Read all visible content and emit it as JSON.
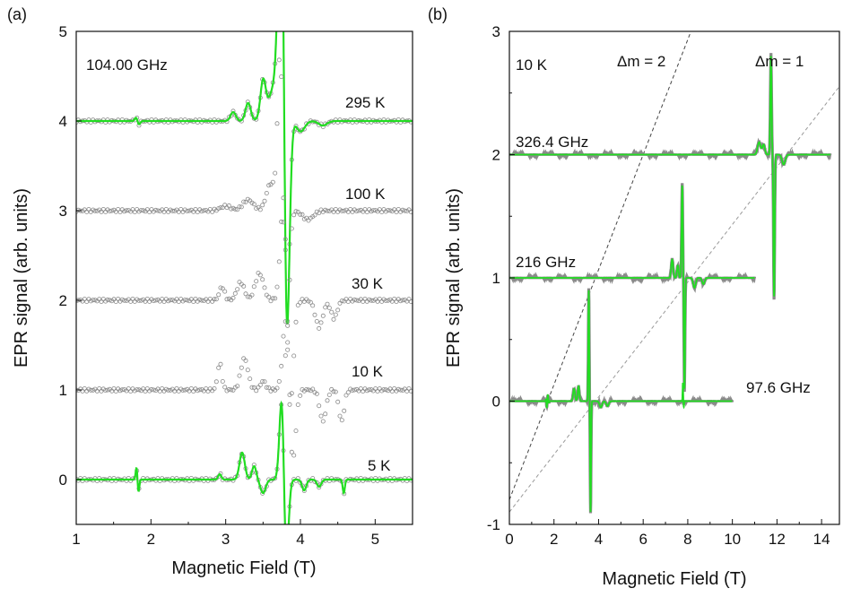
{
  "colors": {
    "fit": "#22dd22",
    "data": "#8a8a8a",
    "guide_dark": "#444444",
    "guide_light": "#9a9a9a"
  },
  "chart_data": [
    {
      "type": "line",
      "panel_label": "(a)",
      "title": "",
      "xlabel": "Magnetic Field (T)",
      "ylabel": "EPR signal (arb. units)",
      "xlim": [
        1,
        5.5
      ],
      "ylim": [
        -0.5,
        5
      ],
      "xticks": [
        1,
        2,
        3,
        4,
        5
      ],
      "yticks": [
        0,
        1,
        2,
        3,
        4,
        5
      ],
      "annotations": [
        "104.00 GHz"
      ],
      "series": [
        {
          "name": "295 K",
          "offset": 4,
          "kind": "data+fit"
        },
        {
          "name": "100 K",
          "offset": 3,
          "kind": "data"
        },
        {
          "name": "30 K",
          "offset": 2,
          "kind": "data"
        },
        {
          "name": "10 K",
          "offset": 1,
          "kind": "data"
        },
        {
          "name": "5 K",
          "offset": 0,
          "kind": "data+fit"
        }
      ]
    },
    {
      "type": "line",
      "panel_label": "(b)",
      "title": "",
      "xlabel": "Magnetic Field (T)",
      "ylabel": "EPR signal (arb. units)",
      "xlim": [
        0,
        14.8
      ],
      "ylim": [
        -1,
        3
      ],
      "xticks": [
        0,
        2,
        4,
        6,
        8,
        10,
        12,
        14
      ],
      "yticks": [
        -1,
        0,
        1,
        2,
        3
      ],
      "annotations": [
        "10 K"
      ],
      "guides": [
        {
          "name": "Δm = 2",
          "x0": 0,
          "y0": -0.8,
          "slope": 0.4667
        },
        {
          "name": "Δm = 1",
          "x0": 0,
          "y0": -0.9,
          "slope": 0.2333
        }
      ],
      "series": [
        {
          "name": "326.4 GHz",
          "offset": 2,
          "x_range": [
            0,
            14.4
          ],
          "center": 11.8
        },
        {
          "name": "216 GHz",
          "offset": 1,
          "x_range": [
            0,
            11
          ],
          "center": 7.8
        },
        {
          "name": "97.6 GHz",
          "offset": 0,
          "x_range": [
            0,
            10
          ],
          "center": 3.6
        }
      ]
    }
  ]
}
